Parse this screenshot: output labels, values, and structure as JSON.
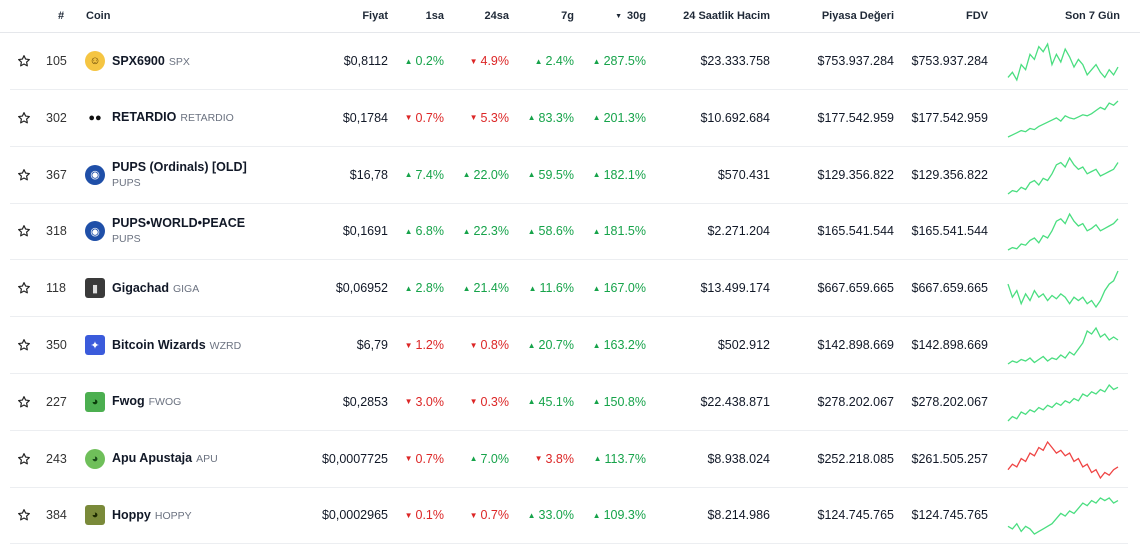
{
  "header": {
    "rank": "#",
    "coin": "Coin",
    "price": "Fiyat",
    "h1": "1sa",
    "h24": "24sa",
    "d7": "7g",
    "d30": "30g",
    "d30_sort_icon": "sort-down-triangle",
    "volume": "24 Saatlik Hacim",
    "mcap": "Piyasa Değeri",
    "fdv": "FDV",
    "spark": "Son 7 Gün"
  },
  "colors": {
    "up": "#16a34a",
    "down": "#dc2626",
    "spark_up": "#4ade80",
    "spark_down": "#ef4444"
  },
  "rows": [
    {
      "rank": "105",
      "name": "SPX6900",
      "symbol": "SPX",
      "two_line": false,
      "logo": "smiley-coin-icon",
      "price": "$0,8112",
      "h1": "0.2%",
      "h1_dir": "up",
      "h24": "4.9%",
      "h24_dir": "down",
      "d7": "2.4%",
      "d7_dir": "up",
      "d30": "287.5%",
      "d30_dir": "up",
      "volume": "$23.333.758",
      "mcap": "$753.937.284",
      "fdv": "$753.937.284",
      "spark_trend": "up",
      "spark": [
        20,
        24,
        18,
        30,
        26,
        38,
        34,
        44,
        40,
        46,
        30,
        38,
        32,
        42,
        36,
        28,
        34,
        30,
        22,
        26,
        30,
        24,
        20,
        26,
        22,
        28
      ]
    },
    {
      "rank": "302",
      "name": "RETARDIO",
      "symbol": "RETARDIO",
      "two_line": false,
      "logo": "retardio-face-icon",
      "price": "$0,1784",
      "h1": "0.7%",
      "h1_dir": "down",
      "h24": "5.3%",
      "h24_dir": "down",
      "d7": "83.3%",
      "d7_dir": "up",
      "d30": "201.3%",
      "d30_dir": "up",
      "volume": "$10.692.684",
      "mcap": "$177.542.959",
      "fdv": "$177.542.959",
      "spark_trend": "up",
      "spark": [
        10,
        12,
        14,
        16,
        15,
        18,
        17,
        20,
        22,
        24,
        26,
        28,
        25,
        30,
        28,
        27,
        29,
        31,
        30,
        32,
        35,
        38,
        36,
        42,
        40,
        44
      ]
    },
    {
      "rank": "367",
      "name": "PUPS (Ordinals) [OLD]",
      "symbol": "PUPS",
      "two_line": true,
      "logo": "pups-dog-icon",
      "price": "$16,78",
      "h1": "7.4%",
      "h1_dir": "up",
      "h24": "22.0%",
      "h24_dir": "up",
      "d7": "59.5%",
      "d7_dir": "up",
      "d30": "182.1%",
      "d30_dir": "up",
      "volume": "$570.431",
      "mcap": "$129.356.822",
      "fdv": "$129.356.822",
      "spark_trend": "up",
      "spark": [
        12,
        15,
        14,
        18,
        16,
        22,
        24,
        20,
        26,
        24,
        30,
        38,
        40,
        36,
        44,
        38,
        34,
        36,
        30,
        32,
        34,
        28,
        30,
        32,
        34,
        40
      ]
    },
    {
      "rank": "318",
      "name": "PUPS•WORLD•PEACE",
      "symbol": "PUPS",
      "two_line": true,
      "logo": "pups-dog-icon",
      "price": "$0,1691",
      "h1": "6.8%",
      "h1_dir": "up",
      "h24": "22.3%",
      "h24_dir": "up",
      "d7": "58.6%",
      "d7_dir": "up",
      "d30": "181.5%",
      "d30_dir": "up",
      "volume": "$2.271.204",
      "mcap": "$165.541.544",
      "fdv": "$165.541.544",
      "spark_trend": "up",
      "spark": [
        12,
        14,
        13,
        17,
        16,
        20,
        22,
        18,
        24,
        22,
        28,
        36,
        38,
        34,
        42,
        36,
        32,
        34,
        28,
        30,
        33,
        28,
        30,
        32,
        34,
        38
      ]
    },
    {
      "rank": "118",
      "name": "Gigachad",
      "symbol": "GIGA",
      "two_line": false,
      "logo": "gigachad-portrait-icon",
      "price": "$0,06952",
      "h1": "2.8%",
      "h1_dir": "up",
      "h24": "21.4%",
      "h24_dir": "up",
      "d7": "11.6%",
      "d7_dir": "up",
      "d30": "167.0%",
      "d30_dir": "up",
      "volume": "$13.499.174",
      "mcap": "$667.659.665",
      "fdv": "$667.659.665",
      "spark_trend": "up",
      "spark": [
        34,
        26,
        30,
        22,
        28,
        24,
        30,
        26,
        28,
        24,
        27,
        25,
        28,
        26,
        22,
        26,
        24,
        26,
        22,
        24,
        20,
        24,
        30,
        34,
        36,
        42
      ]
    },
    {
      "rank": "350",
      "name": "Bitcoin Wizards",
      "symbol": "WZRD",
      "two_line": false,
      "logo": "wizard-pixel-icon",
      "price": "$6,79",
      "h1": "1.2%",
      "h1_dir": "down",
      "h24": "0.8%",
      "h24_dir": "down",
      "d7": "20.7%",
      "d7_dir": "up",
      "d30": "163.2%",
      "d30_dir": "up",
      "volume": "$502.912",
      "mcap": "$142.898.669",
      "fdv": "$142.898.669",
      "spark_trend": "up",
      "spark": [
        14,
        16,
        15,
        17,
        16,
        18,
        15,
        17,
        19,
        16,
        18,
        17,
        20,
        18,
        22,
        20,
        24,
        28,
        36,
        34,
        38,
        32,
        34,
        30,
        32,
        30
      ]
    },
    {
      "rank": "227",
      "name": "Fwog",
      "symbol": "FWOG",
      "two_line": false,
      "logo": "frog-icon",
      "price": "$0,2853",
      "h1": "3.0%",
      "h1_dir": "down",
      "h24": "0.3%",
      "h24_dir": "down",
      "d7": "45.1%",
      "d7_dir": "up",
      "d30": "150.8%",
      "d30_dir": "up",
      "volume": "$22.438.871",
      "mcap": "$278.202.067",
      "fdv": "$278.202.067",
      "spark_trend": "up",
      "spark": [
        10,
        14,
        12,
        18,
        16,
        20,
        18,
        22,
        20,
        24,
        22,
        26,
        24,
        28,
        26,
        30,
        28,
        34,
        32,
        36,
        34,
        38,
        36,
        42,
        38,
        40
      ]
    },
    {
      "rank": "243",
      "name": "Apu Apustaja",
      "symbol": "APU",
      "two_line": false,
      "logo": "apu-frog-icon",
      "price": "$0,0007725",
      "h1": "0.7%",
      "h1_dir": "down",
      "h24": "7.0%",
      "h24_dir": "up",
      "d7": "3.8%",
      "d7_dir": "down",
      "d30": "113.7%",
      "d30_dir": "up",
      "volume": "$8.938.024",
      "mcap": "$252.218.085",
      "fdv": "$261.505.257",
      "spark_trend": "down",
      "spark": [
        24,
        28,
        26,
        32,
        30,
        36,
        34,
        40,
        38,
        44,
        40,
        36,
        38,
        34,
        36,
        30,
        32,
        26,
        28,
        22,
        24,
        18,
        22,
        20,
        24,
        26
      ]
    },
    {
      "rank": "384",
      "name": "Hoppy",
      "symbol": "HOPPY",
      "two_line": false,
      "logo": "hoppy-frog-icon",
      "price": "$0,0002965",
      "h1": "0.1%",
      "h1_dir": "down",
      "h24": "0.7%",
      "h24_dir": "down",
      "d7": "33.0%",
      "d7_dir": "up",
      "d30": "109.3%",
      "d30_dir": "up",
      "volume": "$8.214.986",
      "mcap": "$124.745.765",
      "fdv": "$124.745.765",
      "spark_trend": "up",
      "spark": [
        16,
        14,
        18,
        12,
        16,
        14,
        10,
        12,
        14,
        16,
        18,
        22,
        26,
        24,
        28,
        26,
        30,
        34,
        32,
        36,
        34,
        38,
        36,
        38,
        34,
        36
      ]
    }
  ]
}
